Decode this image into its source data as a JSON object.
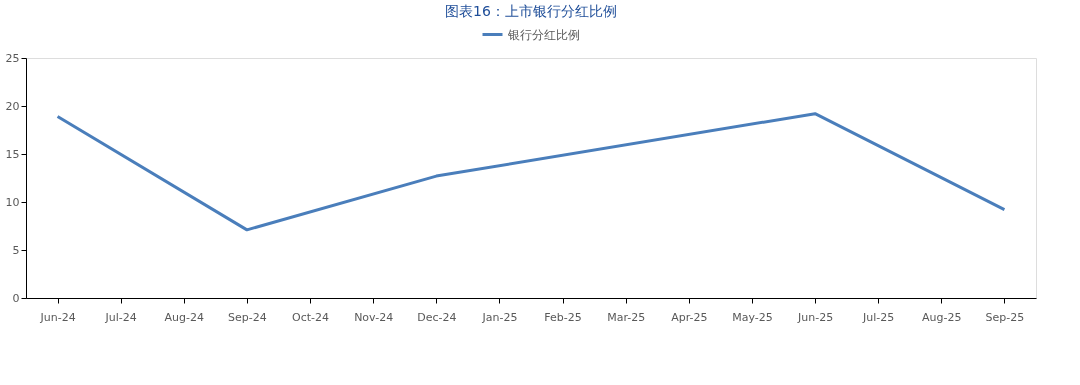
{
  "chart_data": {
    "type": "line",
    "title": "图表16：上市银行分红比例",
    "categories": [
      "Jun-24",
      "Jul-24",
      "Aug-24",
      "Sep-24",
      "Oct-24",
      "Nov-24",
      "Dec-24",
      "Jan-25",
      "Feb-25",
      "Mar-25",
      "Apr-25",
      "May-25",
      "Jun-25",
      "Jul-25",
      "Aug-25",
      "Sep-25"
    ],
    "series": [
      {
        "name": "银行分红比例",
        "color": "#4a7ebb",
        "values": [
          18.9,
          null,
          null,
          7.1,
          null,
          null,
          12.7,
          null,
          null,
          null,
          null,
          null,
          19.2,
          null,
          null,
          9.2
        ]
      }
    ],
    "ylim": [
      0,
      25
    ],
    "yticks": [
      0,
      5,
      10,
      15,
      20,
      25
    ],
    "grid": false,
    "legend": "top",
    "marker": "none",
    "line_style": "solid"
  }
}
